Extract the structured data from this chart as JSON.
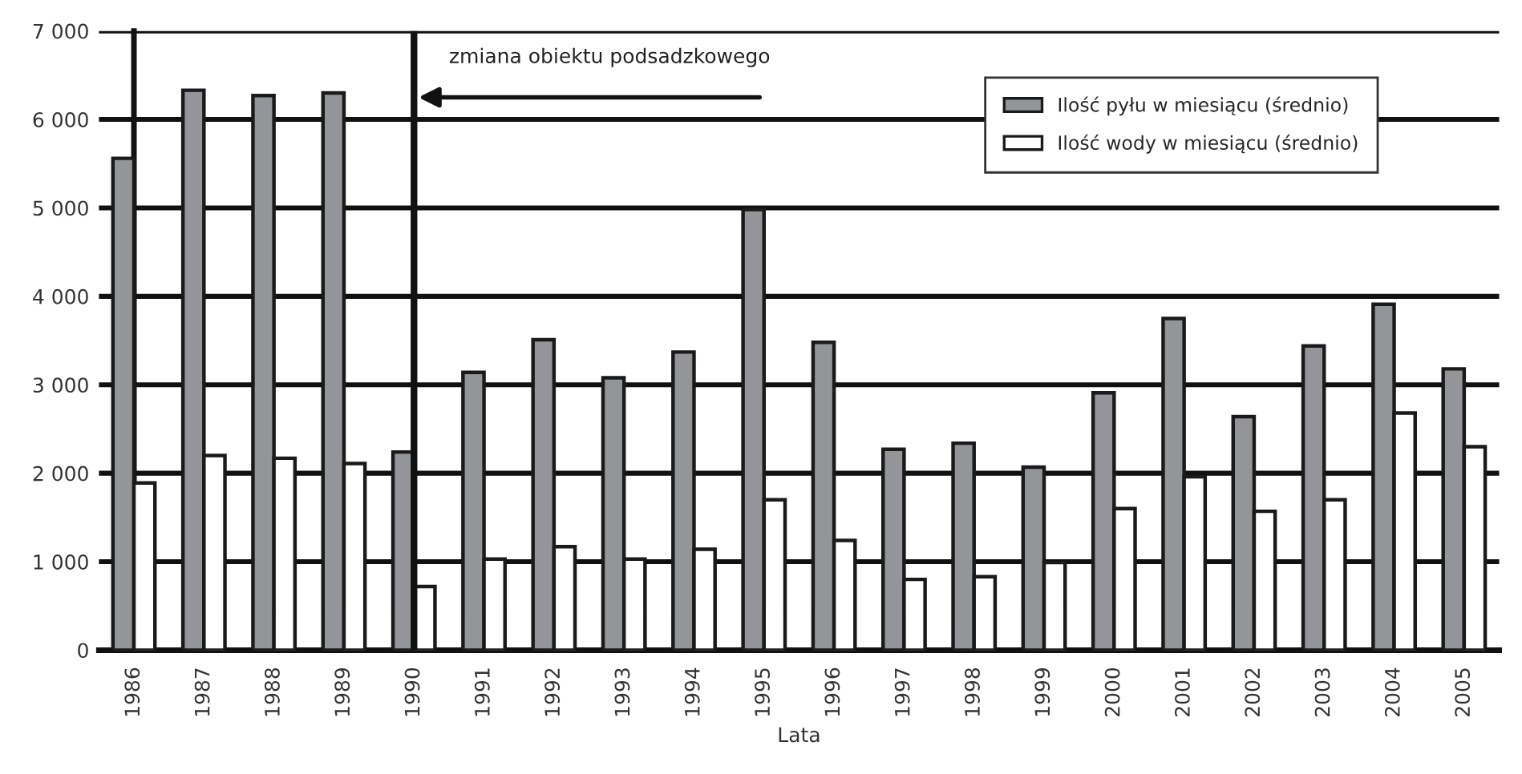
{
  "chart_data": {
    "type": "bar",
    "xlabel": "Lata",
    "categories": [
      "1986",
      "1987",
      "1988",
      "1989",
      "1990",
      "1991",
      "1992",
      "1993",
      "1994",
      "1995",
      "1996",
      "1997",
      "1998",
      "1999",
      "2000",
      "2001",
      "2002",
      "2003",
      "2004",
      "2005"
    ],
    "series": [
      {
        "name": "Ilość pyłu w miesiącu (średnio)",
        "color": "#939598",
        "values": [
          5560,
          6330,
          6270,
          6300,
          2240,
          3140,
          3510,
          3080,
          3370,
          4980,
          3480,
          2270,
          2340,
          2070,
          2910,
          3750,
          2640,
          3440,
          3910,
          3180
        ]
      },
      {
        "name": "Ilość wody w miesiącu (średnio)",
        "color": "#ffffff",
        "values": [
          1890,
          2200,
          2170,
          2110,
          720,
          1030,
          1170,
          1030,
          1140,
          1700,
          1240,
          800,
          830,
          990,
          1600,
          1960,
          1570,
          1700,
          2680,
          2300
        ]
      }
    ],
    "ylim": [
      0,
      7000
    ],
    "yticks": [
      {
        "value": 0,
        "label": "0"
      },
      {
        "value": 1000,
        "label": "1 000"
      },
      {
        "value": 2000,
        "label": "2 000"
      },
      {
        "value": 3000,
        "label": "3 000"
      },
      {
        "value": 4000,
        "label": "4 000"
      },
      {
        "value": 5000,
        "label": "5 000"
      },
      {
        "value": 6000,
        "label": "6 000"
      },
      {
        "value": 7000,
        "label": "7 000"
      }
    ],
    "grid": "y",
    "legend": "top right",
    "ref_lines": [
      {
        "axis": "x",
        "value": "1990"
      }
    ],
    "annotations": [
      {
        "text": "zmiana obiektu podsadzkowego",
        "x": "1990",
        "y": 6250
      }
    ]
  }
}
